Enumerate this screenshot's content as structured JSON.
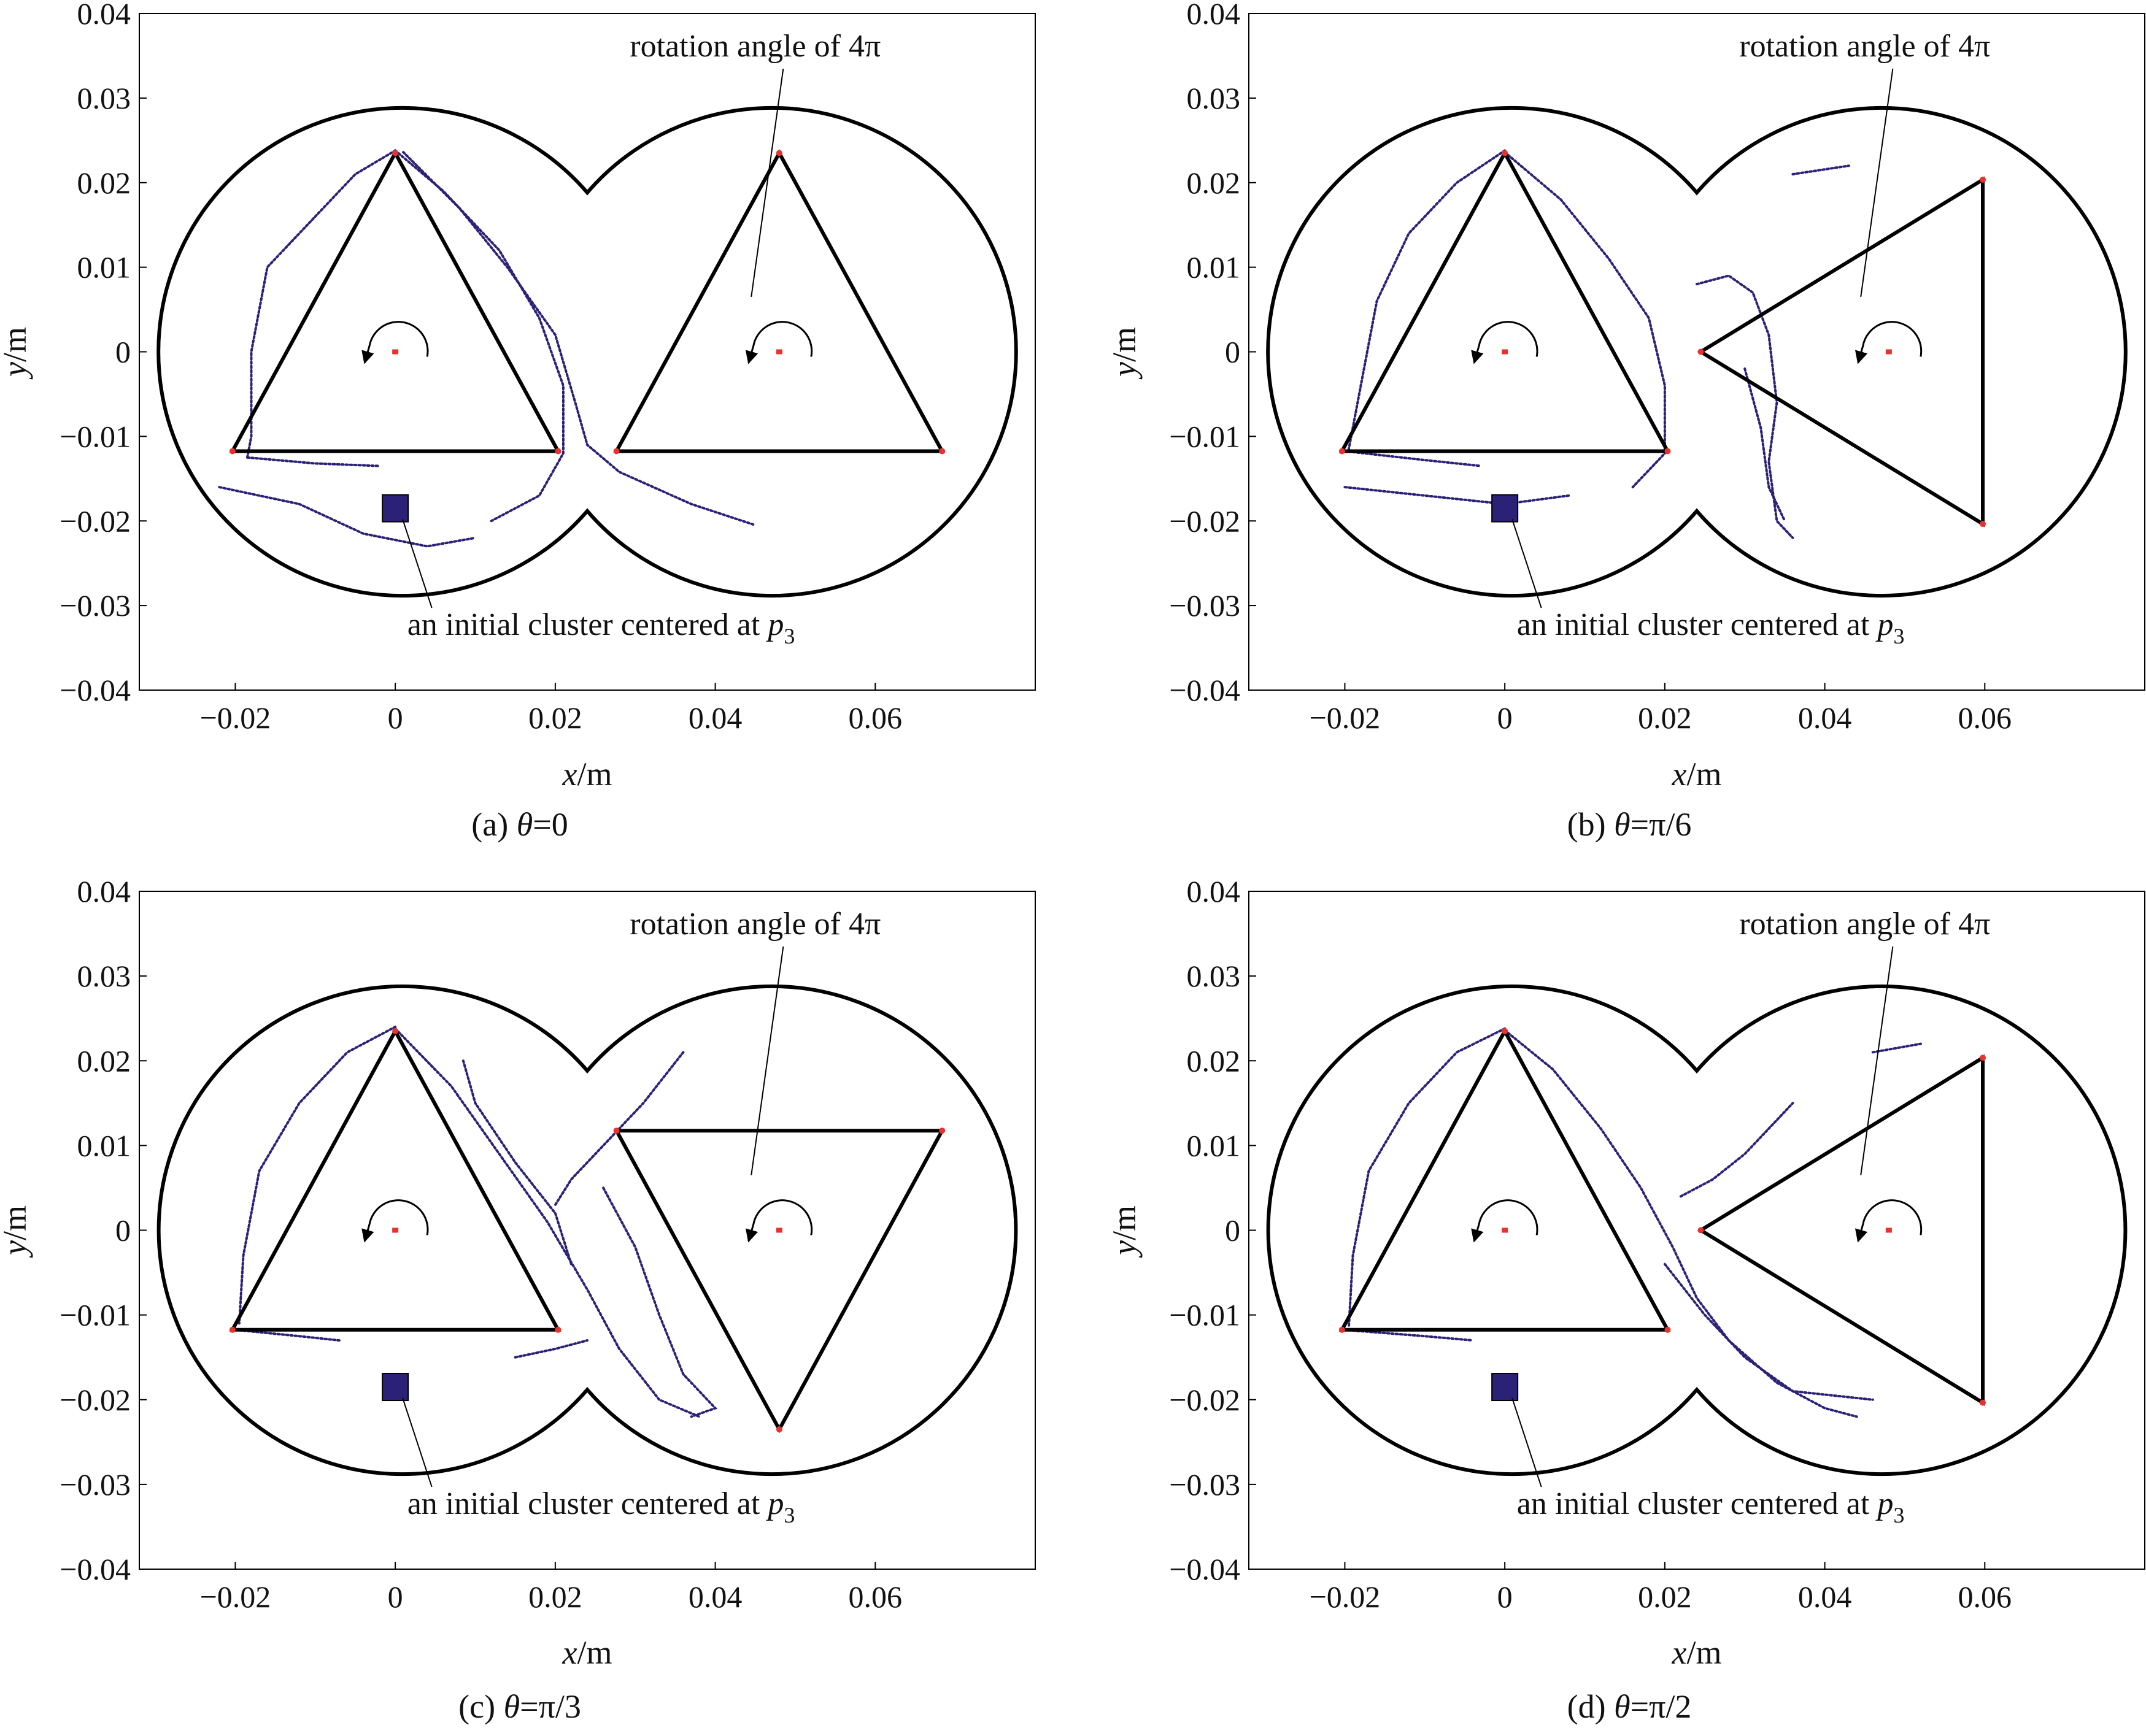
{
  "figure": {
    "colors": {
      "frame": "#000000",
      "particles": "#2b2277",
      "marker": "#e8322d",
      "cluster": "#2b2277"
    }
  },
  "chart_data": [
    {
      "type": "scatter",
      "panel": "a",
      "caption_prefix": "(a) ",
      "caption_var": "θ",
      "caption_value": "=0",
      "xlabel": "x",
      "xunit": "/m",
      "ylabel": "y",
      "yunit": "/m",
      "xlim": [
        -0.032,
        0.08
      ],
      "ylim": [
        -0.04,
        0.04
      ],
      "xticks": [
        -0.02,
        0,
        0.02,
        0.04,
        0.06
      ],
      "xtick_labels": [
        "−0.02",
        "0",
        "0.02",
        "0.04",
        "0.06"
      ],
      "yticks": [
        0.04,
        0.03,
        0.02,
        0.01,
        0,
        -0.01,
        -0.02,
        -0.03,
        -0.04
      ],
      "ytick_labels": [
        "0.04",
        "0.03",
        "0.02",
        "0.01",
        "0",
        "−0.01",
        "−0.02",
        "−0.03",
        "−0.04"
      ],
      "rotor_offset_deg": 0,
      "annotation_rotation": "rotation angle of 4π",
      "annotation_cluster_text": "an initial cluster centered at ",
      "annotation_cluster_var": "p",
      "annotation_cluster_sub": "3",
      "particle_traces": [
        [
          [
            0,
            0.0238
          ],
          [
            -0.005,
            0.021
          ],
          [
            -0.01,
            0.016
          ],
          [
            -0.016,
            0.01
          ],
          [
            -0.018,
            0
          ],
          [
            -0.018,
            -0.01
          ],
          [
            -0.0185,
            -0.0125
          ]
        ],
        [
          [
            -0.0185,
            -0.0125
          ],
          [
            -0.01,
            -0.0132
          ],
          [
            -0.002,
            -0.0135
          ]
        ],
        [
          [
            0,
            0.0238
          ],
          [
            0.006,
            0.019
          ],
          [
            0.013,
            0.012
          ],
          [
            0.018,
            0.004
          ],
          [
            0.021,
            -0.004
          ],
          [
            0.021,
            -0.012
          ],
          [
            0.018,
            -0.017
          ],
          [
            0.012,
            -0.02
          ]
        ],
        [
          [
            0.001,
            0.0236
          ],
          [
            0.008,
            0.017
          ],
          [
            0.014,
            0.01
          ],
          [
            0.02,
            0.002
          ],
          [
            0.0225,
            -0.006
          ],
          [
            0.024,
            -0.011
          ],
          [
            0.028,
            -0.0142
          ],
          [
            0.037,
            -0.018
          ],
          [
            0.045,
            -0.0205
          ]
        ],
        [
          [
            -0.022,
            -0.016
          ],
          [
            -0.012,
            -0.018
          ],
          [
            -0.004,
            -0.0215
          ],
          [
            0.004,
            -0.023
          ],
          [
            0.01,
            -0.022
          ]
        ]
      ]
    },
    {
      "type": "scatter",
      "panel": "b",
      "caption_prefix": "(b) ",
      "caption_var": "θ",
      "caption_value": "=π/6",
      "xlabel": "x",
      "xunit": "/m",
      "ylabel": "y",
      "yunit": "/m",
      "xlim": [
        -0.032,
        0.08
      ],
      "ylim": [
        -0.04,
        0.04
      ],
      "xticks": [
        -0.02,
        0,
        0.02,
        0.04,
        0.06
      ],
      "xtick_labels": [
        "−0.02",
        "0",
        "0.02",
        "0.04",
        "0.06"
      ],
      "yticks": [
        0.04,
        0.03,
        0.02,
        0.01,
        0,
        -0.01,
        -0.02,
        -0.03,
        -0.04
      ],
      "ytick_labels": [
        "0.04",
        "0.03",
        "0.02",
        "0.01",
        "0",
        "−0.01",
        "−0.02",
        "−0.03",
        "−0.04"
      ],
      "rotor_offset_deg": -30,
      "annotation_rotation": "rotation angle of 4π",
      "annotation_cluster_text": "an initial cluster centered at ",
      "annotation_cluster_var": "p",
      "annotation_cluster_sub": "3",
      "particle_traces": [
        [
          [
            0,
            0.0238
          ],
          [
            -0.006,
            0.02
          ],
          [
            -0.012,
            0.014
          ],
          [
            -0.016,
            0.006
          ],
          [
            -0.018,
            -0.004
          ],
          [
            -0.0195,
            -0.0115
          ]
        ],
        [
          [
            -0.0195,
            -0.0118
          ],
          [
            -0.01,
            -0.0128
          ],
          [
            -0.003,
            -0.0135
          ]
        ],
        [
          [
            0,
            0.0236
          ],
          [
            0.007,
            0.018
          ],
          [
            0.013,
            0.011
          ],
          [
            0.018,
            0.004
          ],
          [
            0.02,
            -0.004
          ],
          [
            0.02,
            -0.012
          ],
          [
            0.016,
            -0.016
          ]
        ],
        [
          [
            0.024,
            0.008
          ],
          [
            0.028,
            0.009
          ],
          [
            0.031,
            0.007
          ],
          [
            0.033,
            0.002
          ],
          [
            0.034,
            -0.006
          ],
          [
            0.033,
            -0.013
          ],
          [
            0.034,
            -0.02
          ],
          [
            0.036,
            -0.022
          ]
        ],
        [
          [
            0.03,
            -0.002
          ],
          [
            0.032,
            -0.009
          ],
          [
            0.033,
            -0.016
          ],
          [
            0.035,
            -0.02
          ]
        ],
        [
          [
            0.036,
            0.021
          ],
          [
            0.043,
            0.022
          ]
        ],
        [
          [
            -0.02,
            -0.016
          ],
          [
            -0.01,
            -0.017
          ],
          [
            0,
            -0.018
          ],
          [
            0.008,
            -0.017
          ]
        ]
      ]
    },
    {
      "type": "scatter",
      "panel": "c",
      "caption_prefix": "(c) ",
      "caption_var": "θ",
      "caption_value": "=π/3",
      "xlabel": "x",
      "xunit": "/m",
      "ylabel": "y",
      "yunit": "/m",
      "xlim": [
        -0.032,
        0.08
      ],
      "ylim": [
        -0.04,
        0.04
      ],
      "xticks": [
        -0.02,
        0,
        0.02,
        0.04,
        0.06
      ],
      "xtick_labels": [
        "−0.02",
        "0",
        "0.02",
        "0.04",
        "0.06"
      ],
      "yticks": [
        0.04,
        0.03,
        0.02,
        0.01,
        0,
        -0.01,
        -0.02,
        -0.03,
        -0.04
      ],
      "ytick_labels": [
        "0.04",
        "0.03",
        "0.02",
        "0.01",
        "0",
        "−0.01",
        "−0.02",
        "−0.03",
        "−0.04"
      ],
      "rotor_offset_deg": 60,
      "annotation_rotation": "rotation angle of 4π",
      "annotation_cluster_text": "an initial cluster centered at ",
      "annotation_cluster_var": "p",
      "annotation_cluster_sub": "3",
      "particle_traces": [
        [
          [
            0,
            0.024
          ],
          [
            -0.006,
            0.021
          ],
          [
            -0.012,
            0.015
          ],
          [
            -0.017,
            0.007
          ],
          [
            -0.019,
            -0.003
          ],
          [
            -0.0195,
            -0.011
          ]
        ],
        [
          [
            -0.0195,
            -0.0118
          ],
          [
            -0.012,
            -0.0125
          ],
          [
            -0.007,
            -0.013
          ]
        ],
        [
          [
            0,
            0.0238
          ],
          [
            0.007,
            0.017
          ],
          [
            0.013,
            0.009
          ],
          [
            0.019,
            0.001
          ],
          [
            0.024,
            -0.007
          ],
          [
            0.028,
            -0.014
          ],
          [
            0.033,
            -0.02
          ],
          [
            0.038,
            -0.022
          ]
        ],
        [
          [
            0.0085,
            0.02
          ],
          [
            0.01,
            0.015
          ],
          [
            0.015,
            0.008
          ],
          [
            0.02,
            0.002
          ],
          [
            0.022,
            -0.004
          ]
        ],
        [
          [
            0.036,
            0.021
          ],
          [
            0.031,
            0.015
          ],
          [
            0.026,
            0.01
          ],
          [
            0.022,
            0.006
          ],
          [
            0.02,
            0.003
          ]
        ],
        [
          [
            0.026,
            0.005
          ],
          [
            0.03,
            -0.002
          ],
          [
            0.033,
            -0.01
          ],
          [
            0.036,
            -0.017
          ],
          [
            0.038,
            -0.019
          ],
          [
            0.04,
            -0.021
          ],
          [
            0.037,
            -0.022
          ]
        ],
        [
          [
            0.015,
            -0.015
          ],
          [
            0.02,
            -0.014
          ],
          [
            0.024,
            -0.013
          ]
        ]
      ]
    },
    {
      "type": "scatter",
      "panel": "d",
      "caption_prefix": "(d) ",
      "caption_var": "θ",
      "caption_value": "=π/2",
      "xlabel": "x",
      "xunit": "/m",
      "ylabel": "y",
      "yunit": "/m",
      "xlim": [
        -0.032,
        0.08
      ],
      "ylim": [
        -0.04,
        0.04
      ],
      "xticks": [
        -0.02,
        0,
        0.02,
        0.04,
        0.06
      ],
      "xtick_labels": [
        "−0.02",
        "0",
        "0.02",
        "0.04",
        "0.06"
      ],
      "yticks": [
        0.04,
        0.03,
        0.02,
        0.01,
        0,
        -0.01,
        -0.02,
        -0.03,
        -0.04
      ],
      "ytick_labels": [
        "0.04",
        "0.03",
        "0.02",
        "0.01",
        "0",
        "−0.01",
        "−0.02",
        "−0.03",
        "−0.04"
      ],
      "rotor_offset_deg": 90,
      "annotation_rotation": "rotation angle of 4π",
      "annotation_cluster_text": "an initial cluster centered at ",
      "annotation_cluster_var": "p",
      "annotation_cluster_sub": "3",
      "particle_traces": [
        [
          [
            0,
            0.0238
          ],
          [
            -0.006,
            0.021
          ],
          [
            -0.012,
            0.015
          ],
          [
            -0.017,
            0.007
          ],
          [
            -0.019,
            -0.003
          ],
          [
            -0.0195,
            -0.0115
          ]
        ],
        [
          [
            -0.0195,
            -0.0118
          ],
          [
            -0.01,
            -0.0125
          ],
          [
            -0.004,
            -0.013
          ]
        ],
        [
          [
            0,
            0.0236
          ],
          [
            0.006,
            0.019
          ],
          [
            0.012,
            0.012
          ],
          [
            0.017,
            0.005
          ],
          [
            0.021,
            -0.002
          ],
          [
            0.024,
            -0.008
          ],
          [
            0.028,
            -0.013
          ],
          [
            0.034,
            -0.018
          ],
          [
            0.04,
            -0.021
          ],
          [
            0.044,
            -0.022
          ]
        ],
        [
          [
            0.022,
            0.004
          ],
          [
            0.026,
            0.006
          ],
          [
            0.03,
            0.009
          ],
          [
            0.033,
            0.012
          ],
          [
            0.036,
            0.015
          ]
        ],
        [
          [
            0.02,
            -0.004
          ],
          [
            0.025,
            -0.01
          ],
          [
            0.03,
            -0.015
          ],
          [
            0.036,
            -0.019
          ],
          [
            0.046,
            -0.02
          ]
        ],
        [
          [
            0.046,
            0.021
          ],
          [
            0.052,
            0.022
          ]
        ]
      ]
    }
  ]
}
